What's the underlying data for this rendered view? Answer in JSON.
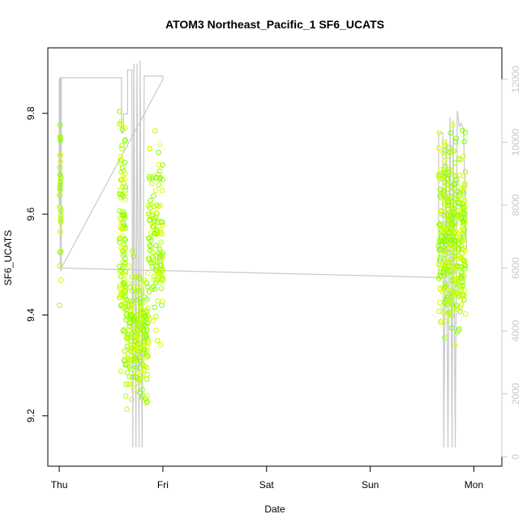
{
  "chart_data": {
    "type": "scatter",
    "title": "ATOM3 Northeast_Pacific_1 SF6_UCATS",
    "xlabel": "Date",
    "ylabel": "SF6_UCATS",
    "x_ticks": [
      "Thu",
      "Fri",
      "Sat",
      "Sun",
      "Mon"
    ],
    "x_range": [
      -0.11,
      4.27
    ],
    "y_left": {
      "range": [
        9.1,
        9.93
      ],
      "ticks": [
        "9.2",
        "9.4",
        "9.6",
        "9.8"
      ]
    },
    "y_right": {
      "range": [
        -300,
        13000
      ],
      "ticks": [
        "0",
        "2000",
        "4000",
        "6000",
        "8000",
        "10000",
        "12000"
      ],
      "color": "#c8c8c8"
    },
    "grid": false,
    "legend": "none",
    "point_colors": [
      "#7fff00",
      "#bfff00",
      "#dfff00",
      "#9fff00"
    ],
    "altitude_line_color": "#c8c8c8",
    "scatter_clusters": [
      {
        "x": [
          0.0,
          0.02
        ],
        "y_core": [
          9.35,
          9.9
        ],
        "count": 34
      },
      {
        "x": [
          0.58,
          0.64
        ],
        "y_core": [
          9.2,
          9.9
        ],
        "count": 120
      },
      {
        "x": [
          0.64,
          0.86
        ],
        "y_core": [
          9.18,
          9.55
        ],
        "count": 220
      },
      {
        "x": [
          0.86,
          1.0
        ],
        "y_core": [
          9.3,
          9.8
        ],
        "count": 130
      },
      {
        "x": [
          3.66,
          3.92
        ],
        "y_core": [
          9.3,
          9.81
        ],
        "count": 380
      }
    ],
    "altitude_series": {
      "x": [
        0.0,
        0.0,
        0.01,
        0.01,
        0.02,
        0.02,
        0.03,
        0.03,
        0.6,
        0.6,
        0.62,
        0.62,
        0.66,
        0.66,
        0.7,
        0.71,
        0.72,
        0.74,
        0.75,
        0.77,
        0.78,
        0.8,
        0.82,
        0.84,
        0.86,
        0.88,
        0.9,
        0.93,
        0.95,
        0.98,
        0.99,
        1.0,
        1.0,
        0.02,
        3.66,
        3.66,
        3.7,
        3.71,
        3.73,
        3.75,
        3.77,
        3.79,
        3.8,
        3.82,
        3.84,
        3.86,
        3.88,
        3.9,
        3.92,
        3.93
      ],
      "y": [
        8000,
        12000,
        12050,
        6000,
        5900,
        12050,
        12050,
        12050,
        12050,
        10300,
        10300,
        10900,
        10900,
        12300,
        12300,
        300,
        12500,
        300,
        12500,
        300,
        12600,
        300,
        12100,
        12100,
        12100,
        12100,
        12100,
        12100,
        12100,
        12100,
        12100,
        12100,
        12000,
        6000,
        5700,
        10300,
        10300,
        300,
        10100,
        300,
        10800,
        300,
        10700,
        300,
        11000,
        10500,
        10600,
        10400,
        7500,
        6600
      ]
    }
  }
}
